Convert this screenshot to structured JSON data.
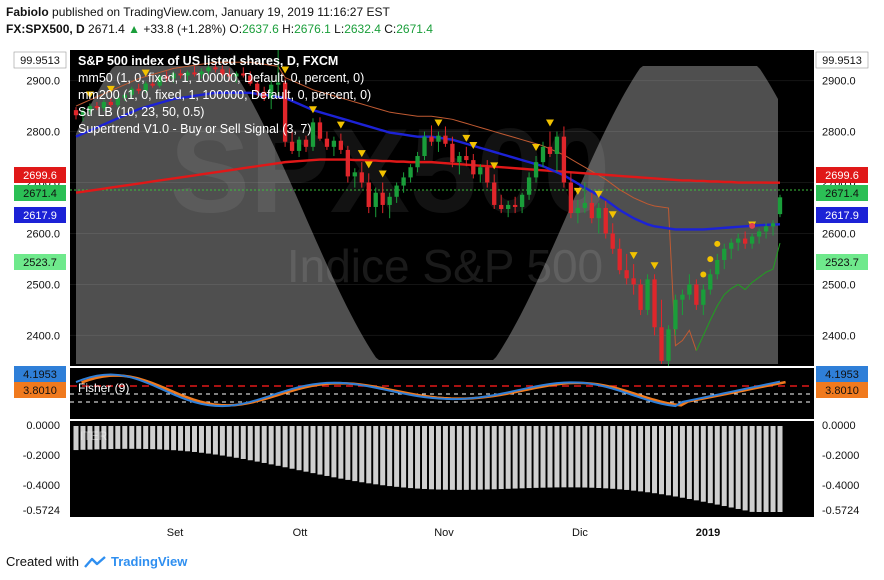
{
  "header": {
    "author": "Fabiolo",
    "published": "published on TradingView.com, January 19, 2019 11:16:27 EST",
    "symbol": "FX:SPX500, D",
    "price": "2671.4",
    "change": "+33.8 (+1.28%)",
    "open_label": "O:",
    "open": "2637.6",
    "high_label": "H:",
    "high": "2676.1",
    "low_label": "L:",
    "low": "2632.4",
    "close_label": "C:",
    "close": "2671.4"
  },
  "legend": {
    "title": "S&P 500 index of US listed shares, D, FXCM",
    "items": [
      "mm50 (1, 0, fixed, 1, 100000, Default, 0, percent, 0)",
      "mm200 (1, 0, fixed, 1, 100000, Default, 0, percent, 0)",
      "Str LB (10, 23, 50, 0.5)",
      "Supertrend V1.0 - Buy or Sell Signal (3, 7)"
    ]
  },
  "watermark": {
    "symbol": "SPX500",
    "name": "Indice S&P 500"
  },
  "fisher_label": "Fisher (9)",
  "iter_label": "ITER",
  "footer": {
    "created_with": "Created with",
    "brand": "TradingView"
  },
  "colors": {
    "up": "#1a9e3a",
    "down": "#e0262b",
    "mm50": "#1c22d6",
    "mm200": "#e01818",
    "fisher": "#2f7fd8",
    "trigger": "#f07a1e",
    "supertrend_up": "#20a020",
    "supertrend_down": "#c05a32",
    "marker": "#f2c200",
    "band": "#6a6a6a",
    "price_line": "#3bbf3b"
  },
  "chart_data": {
    "type": "candlestick",
    "y_ticks": [
      "2900.0",
      "2800.0",
      "2700.0",
      "2600.0",
      "2500.0",
      "2400.0"
    ],
    "ylim": [
      2340,
      2960
    ],
    "x_ticks": [
      "Set",
      "Ott",
      "Nov",
      "Dic",
      "2019"
    ],
    "price_labels": [
      {
        "value": "99.9513",
        "color": "#ffffff",
        "text_color": "#111111"
      },
      {
        "value": "2699.6",
        "color": "#e01818",
        "text_color": "#ffffff"
      },
      {
        "value": "2671.4",
        "color": "#2bbf55",
        "text_color": "#111111"
      },
      {
        "value": "2617.9",
        "color": "#1c22d6",
        "text_color": "#ffffff"
      },
      {
        "value": "2523.7",
        "color": "#6fe98c",
        "text_color": "#111111"
      }
    ],
    "candles": [
      [
        2842,
        2848,
        2824,
        2832
      ],
      [
        2832,
        2846,
        2820,
        2840
      ],
      [
        2840,
        2855,
        2834,
        2850
      ],
      [
        2850,
        2858,
        2842,
        2846
      ],
      [
        2846,
        2862,
        2840,
        2858
      ],
      [
        2858,
        2866,
        2848,
        2852
      ],
      [
        2852,
        2870,
        2848,
        2866
      ],
      [
        2866,
        2876,
        2860,
        2872
      ],
      [
        2872,
        2888,
        2866,
        2884
      ],
      [
        2884,
        2894,
        2874,
        2880
      ],
      [
        2880,
        2898,
        2876,
        2894
      ],
      [
        2894,
        2904,
        2886,
        2890
      ],
      [
        2890,
        2912,
        2886,
        2908
      ],
      [
        2908,
        2918,
        2898,
        2904
      ],
      [
        2904,
        2918,
        2896,
        2914
      ],
      [
        2914,
        2922,
        2904,
        2910
      ],
      [
        2910,
        2920,
        2900,
        2916
      ],
      [
        2916,
        2928,
        2908,
        2912
      ],
      [
        2912,
        2924,
        2904,
        2918
      ],
      [
        2918,
        2930,
        2912,
        2926
      ],
      [
        2926,
        2934,
        2916,
        2922
      ],
      [
        2922,
        2930,
        2906,
        2912
      ],
      [
        2912,
        2924,
        2900,
        2908
      ],
      [
        2908,
        2918,
        2896,
        2914
      ],
      [
        2914,
        2926,
        2906,
        2910
      ],
      [
        2910,
        2918,
        2890,
        2894
      ],
      [
        2894,
        2900,
        2870,
        2878
      ],
      [
        2878,
        2888,
        2860,
        2866
      ],
      [
        2866,
        2900,
        2844,
        2892
      ],
      [
        2892,
        2960,
        2870,
        2896
      ],
      [
        2896,
        2904,
        2770,
        2780
      ],
      [
        2780,
        2800,
        2756,
        2762
      ],
      [
        2762,
        2790,
        2750,
        2784
      ],
      [
        2784,
        2792,
        2760,
        2770
      ],
      [
        2770,
        2826,
        2762,
        2818
      ],
      [
        2818,
        2828,
        2782,
        2786
      ],
      [
        2786,
        2800,
        2764,
        2770
      ],
      [
        2770,
        2790,
        2752,
        2782
      ],
      [
        2782,
        2796,
        2756,
        2764
      ],
      [
        2764,
        2772,
        2700,
        2712
      ],
      [
        2712,
        2728,
        2690,
        2720
      ],
      [
        2720,
        2740,
        2690,
        2700
      ],
      [
        2700,
        2718,
        2640,
        2652
      ],
      [
        2652,
        2690,
        2632,
        2680
      ],
      [
        2680,
        2700,
        2640,
        2656
      ],
      [
        2656,
        2680,
        2630,
        2672
      ],
      [
        2672,
        2700,
        2660,
        2694
      ],
      [
        2694,
        2720,
        2680,
        2710
      ],
      [
        2710,
        2736,
        2700,
        2730
      ],
      [
        2730,
        2760,
        2720,
        2752
      ],
      [
        2752,
        2800,
        2744,
        2790
      ],
      [
        2790,
        2812,
        2772,
        2780
      ],
      [
        2780,
        2800,
        2760,
        2792
      ],
      [
        2792,
        2810,
        2770,
        2776
      ],
      [
        2776,
        2790,
        2730,
        2740
      ],
      [
        2740,
        2760,
        2716,
        2752
      ],
      [
        2752,
        2770,
        2732,
        2744
      ],
      [
        2744,
        2756,
        2708,
        2716
      ],
      [
        2716,
        2736,
        2700,
        2730
      ],
      [
        2730,
        2744,
        2690,
        2700
      ],
      [
        2700,
        2716,
        2648,
        2656
      ],
      [
        2656,
        2676,
        2640,
        2648
      ],
      [
        2648,
        2664,
        2632,
        2656
      ],
      [
        2656,
        2672,
        2640,
        2652
      ],
      [
        2652,
        2680,
        2640,
        2676
      ],
      [
        2676,
        2720,
        2666,
        2710
      ],
      [
        2710,
        2752,
        2700,
        2740
      ],
      [
        2740,
        2780,
        2730,
        2770
      ],
      [
        2770,
        2800,
        2750,
        2756
      ],
      [
        2756,
        2800,
        2720,
        2790
      ],
      [
        2790,
        2810,
        2690,
        2700
      ],
      [
        2700,
        2720,
        2630,
        2640
      ],
      [
        2640,
        2666,
        2620,
        2650
      ],
      [
        2650,
        2700,
        2640,
        2660
      ],
      [
        2660,
        2680,
        2620,
        2630
      ],
      [
        2630,
        2660,
        2600,
        2650
      ],
      [
        2650,
        2664,
        2590,
        2600
      ],
      [
        2600,
        2620,
        2560,
        2570
      ],
      [
        2570,
        2590,
        2520,
        2528
      ],
      [
        2528,
        2560,
        2500,
        2512
      ],
      [
        2512,
        2540,
        2480,
        2500
      ],
      [
        2500,
        2510,
        2440,
        2450
      ],
      [
        2450,
        2520,
        2440,
        2510
      ],
      [
        2510,
        2520,
        2400,
        2416
      ],
      [
        2416,
        2470,
        2344,
        2350
      ],
      [
        2350,
        2420,
        2340,
        2412
      ],
      [
        2412,
        2480,
        2400,
        2470
      ],
      [
        2470,
        2490,
        2440,
        2480
      ],
      [
        2480,
        2520,
        2470,
        2500
      ],
      [
        2500,
        2510,
        2450,
        2460
      ],
      [
        2460,
        2500,
        2440,
        2490
      ],
      [
        2490,
        2530,
        2480,
        2520
      ],
      [
        2520,
        2560,
        2510,
        2548
      ],
      [
        2548,
        2580,
        2530,
        2570
      ],
      [
        2570,
        2590,
        2550,
        2582
      ],
      [
        2582,
        2600,
        2566,
        2590
      ],
      [
        2590,
        2604,
        2570,
        2580
      ],
      [
        2580,
        2600,
        2570,
        2594
      ],
      [
        2594,
        2610,
        2580,
        2604
      ],
      [
        2604,
        2620,
        2590,
        2614
      ],
      [
        2614,
        2626,
        2596,
        2620
      ],
      [
        2638,
        2676,
        2632,
        2671
      ]
    ],
    "mm50": [
      2790,
      2796,
      2802,
      2808,
      2814,
      2820,
      2826,
      2832,
      2838,
      2844,
      2848,
      2852,
      2856,
      2860,
      2864,
      2866,
      2868,
      2870,
      2872,
      2874,
      2876,
      2876,
      2876,
      2876,
      2876,
      2876,
      2874,
      2872,
      2870,
      2868,
      2866,
      2860,
      2854,
      2848,
      2842,
      2838,
      2834,
      2830,
      2826,
      2822,
      2818,
      2814,
      2810,
      2806,
      2802,
      2798,
      2796,
      2794,
      2792,
      2790,
      2790,
      2790,
      2788,
      2786,
      2784,
      2780,
      2776,
      2772,
      2768,
      2764,
      2760,
      2756,
      2752,
      2748,
      2744,
      2740,
      2736,
      2732,
      2726,
      2720,
      2714,
      2706,
      2698,
      2690,
      2682,
      2674,
      2666,
      2656,
      2646,
      2638,
      2630,
      2624,
      2618,
      2614,
      2612,
      2610,
      2608,
      2608,
      2608,
      2608,
      2608,
      2609,
      2610,
      2611,
      2612,
      2613,
      2614,
      2615,
      2616,
      2617,
      2617.5,
      2617.9
    ],
    "mm200": [
      2680,
      2682,
      2684,
      2686,
      2688,
      2690,
      2692,
      2694,
      2696,
      2698,
      2700,
      2702,
      2704,
      2706,
      2708,
      2710,
      2712,
      2714,
      2716,
      2718,
      2720,
      2722,
      2724,
      2726,
      2728,
      2730,
      2732,
      2734,
      2736,
      2738,
      2740,
      2741,
      2742,
      2743,
      2744,
      2745,
      2745,
      2745,
      2745,
      2745,
      2744,
      2744,
      2743,
      2743,
      2742,
      2742,
      2741,
      2741,
      2740,
      2740,
      2740,
      2740,
      2739,
      2738,
      2737,
      2736,
      2735,
      2734,
      2733,
      2732,
      2731,
      2730,
      2729,
      2728,
      2727,
      2726,
      2725,
      2724,
      2723,
      2722,
      2721,
      2720,
      2719,
      2718,
      2717,
      2716,
      2715,
      2714,
      2713,
      2712,
      2711,
      2710,
      2709,
      2708,
      2707,
      2706,
      2705,
      2704,
      2704,
      2703,
      2703,
      2702,
      2702,
      2701,
      2701,
      2700,
      2700,
      2700,
      2700,
      2699.8,
      2699.7,
      2699.6
    ],
    "fisher": {
      "label": "Fisher (9)",
      "ylim": [
        -4.5,
        4.5
      ],
      "levels": [
        "4.1953",
        "3.8010"
      ]
    },
    "iter": {
      "label": "ITER",
      "ylim": [
        -0.5724,
        0
      ],
      "y_ticks": [
        "0.0000",
        "-0.2000",
        "-0.4000",
        "-0.5724"
      ]
    }
  }
}
